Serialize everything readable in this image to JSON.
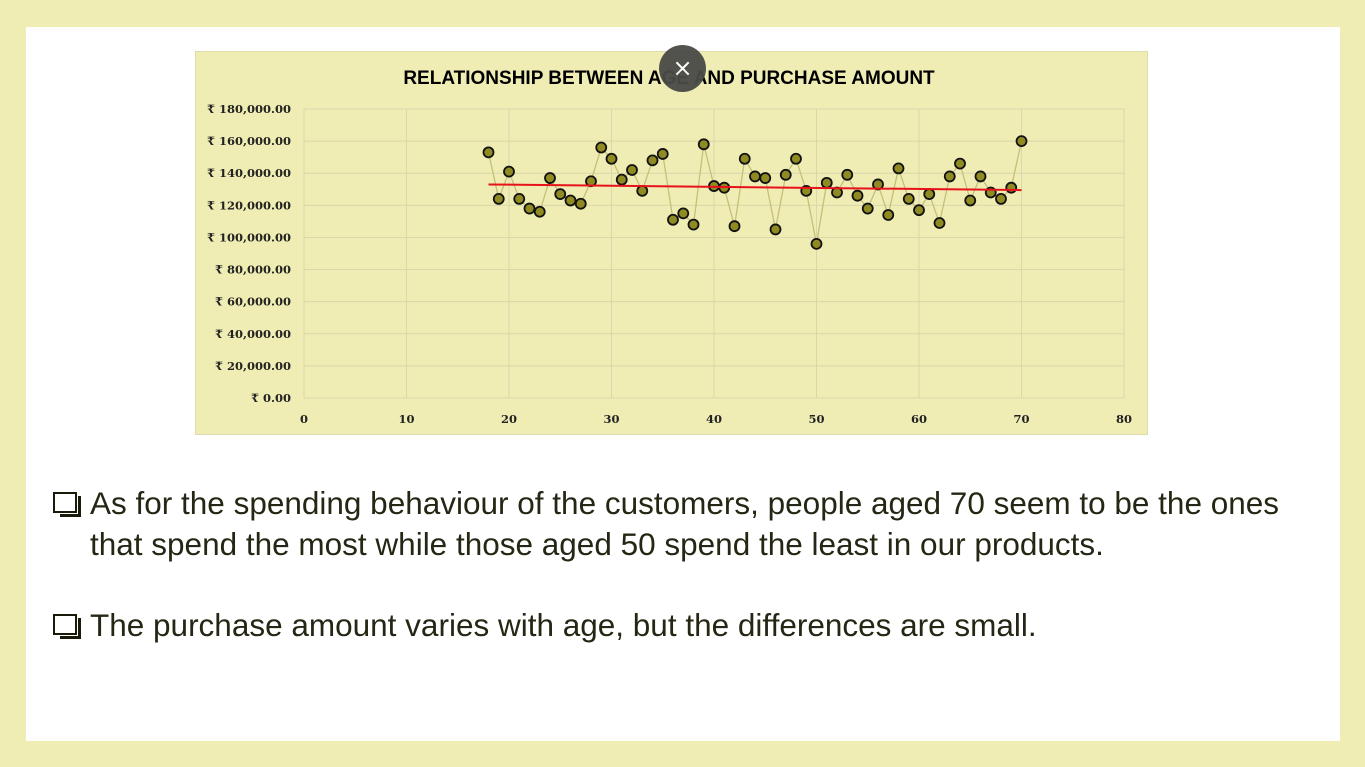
{
  "close_button": {
    "symbol": "×",
    "icon": "close-icon"
  },
  "chart_data": {
    "type": "scatter",
    "title": "RELATIONSHIP BETWEEN AGE AND PURCHASE AMOUNT",
    "xlabel": "",
    "ylabel": "",
    "xlim": [
      0,
      80
    ],
    "ylim": [
      0,
      180000
    ],
    "x_ticks": [
      "0",
      "10",
      "20",
      "30",
      "40",
      "50",
      "60",
      "70",
      "80"
    ],
    "y_ticks": [
      "₹ 0.00",
      "₹ 20,000.00",
      "₹ 40,000.00",
      "₹ 60,000.00",
      "₹ 80,000.00",
      "₹ 100,000.00",
      "₹ 120,000.00",
      "₹ 140,000.00",
      "₹ 160,000.00",
      "₹ 180,000.00"
    ],
    "grid": true,
    "legend": "none",
    "series": [
      {
        "marker_color": "#8f8b22",
        "line_color": "#c4c07a",
        "points": [
          [
            18,
            153000
          ],
          [
            19,
            124000
          ],
          [
            20,
            141000
          ],
          [
            21,
            124000
          ],
          [
            22,
            118000
          ],
          [
            23,
            116000
          ],
          [
            24,
            137000
          ],
          [
            25,
            127000
          ],
          [
            26,
            123000
          ],
          [
            27,
            121000
          ],
          [
            28,
            135000
          ],
          [
            29,
            156000
          ],
          [
            30,
            149000
          ],
          [
            31,
            136000
          ],
          [
            32,
            142000
          ],
          [
            33,
            129000
          ],
          [
            34,
            148000
          ],
          [
            35,
            152000
          ],
          [
            36,
            111000
          ],
          [
            37,
            115000
          ],
          [
            38,
            108000
          ],
          [
            39,
            158000
          ],
          [
            40,
            132000
          ],
          [
            41,
            131000
          ],
          [
            42,
            107000
          ],
          [
            43,
            149000
          ],
          [
            44,
            138000
          ],
          [
            45,
            137000
          ],
          [
            46,
            105000
          ],
          [
            47,
            139000
          ],
          [
            48,
            149000
          ],
          [
            49,
            129000
          ],
          [
            50,
            96000
          ],
          [
            51,
            134000
          ],
          [
            52,
            128000
          ],
          [
            53,
            139000
          ],
          [
            54,
            126000
          ],
          [
            55,
            118000
          ],
          [
            56,
            133000
          ],
          [
            57,
            114000
          ],
          [
            58,
            143000
          ],
          [
            59,
            124000
          ],
          [
            60,
            117000
          ],
          [
            61,
            127000
          ],
          [
            62,
            109000
          ],
          [
            63,
            138000
          ],
          [
            64,
            146000
          ],
          [
            65,
            123000
          ],
          [
            66,
            138000
          ],
          [
            67,
            128000
          ],
          [
            68,
            124000
          ],
          [
            69,
            131000
          ],
          [
            70,
            160000
          ]
        ]
      }
    ],
    "trendline": {
      "color": "#e8121a",
      "x": [
        18,
        70
      ],
      "y": [
        133000,
        129500
      ]
    }
  },
  "bullets": [
    "As for the spending behaviour of the customers, people aged 70 seem to be the ones that spend the most while those aged 50 spend the least in our products.",
    "The purchase amount varies with age, but the differences are small."
  ]
}
